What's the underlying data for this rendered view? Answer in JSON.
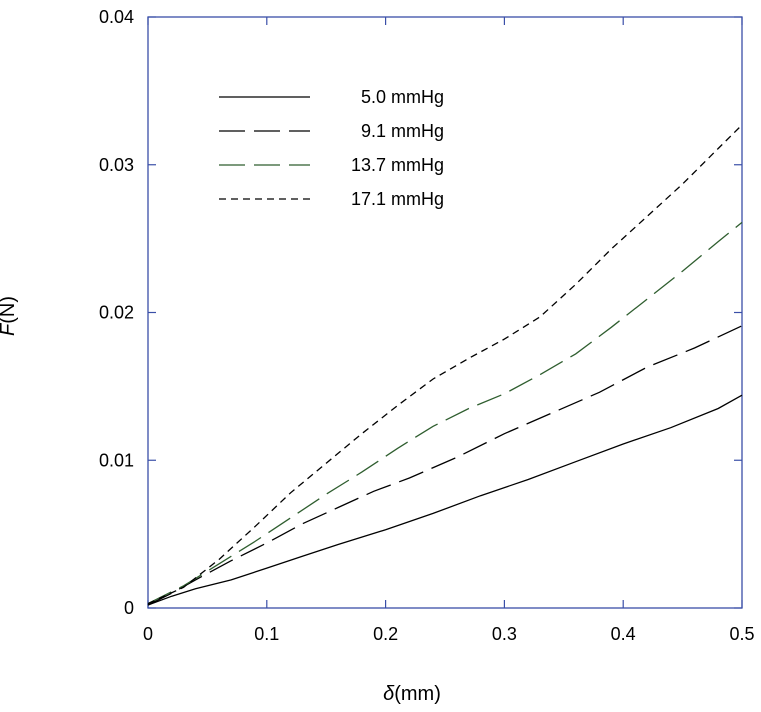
{
  "chart_data": {
    "type": "line",
    "title": "",
    "xlabel_symbol": "δ",
    "xlabel_unit": "(mm)",
    "ylabel_symbol": "F",
    "ylabel_unit": "(N)",
    "xlim": [
      0,
      0.5
    ],
    "ylim": [
      0,
      0.04
    ],
    "xticks": [
      0,
      0.1,
      0.2,
      0.3,
      0.4,
      0.5
    ],
    "xtick_labels": [
      "0",
      "0.1",
      "0.2",
      "0.3",
      "0.4",
      "0.5"
    ],
    "yticks": [
      0,
      0.01,
      0.02,
      0.03,
      0.04
    ],
    "ytick_labels": [
      "0",
      "0.01",
      "0.02",
      "0.03",
      "0.04"
    ],
    "grid": false,
    "legend_position": "top-left",
    "colors": {
      "axis_frame": "#3a4fa8",
      "black": "#000000",
      "green": "#2f5e2f"
    },
    "series": [
      {
        "name": "5.0 mmHg",
        "style": "solid",
        "color": "#000000",
        "x": [
          0,
          0.02,
          0.04,
          0.07,
          0.1,
          0.13,
          0.16,
          0.2,
          0.24,
          0.28,
          0.32,
          0.36,
          0.4,
          0.44,
          0.48,
          0.5
        ],
        "y": [
          0.0002,
          0.0008,
          0.0013,
          0.0019,
          0.0027,
          0.0035,
          0.0043,
          0.0053,
          0.0064,
          0.0076,
          0.0087,
          0.0099,
          0.0111,
          0.0122,
          0.0135,
          0.0144
        ]
      },
      {
        "name": "9.1 mmHg",
        "style": "long-dash",
        "color": "#000000",
        "x": [
          0,
          0.02,
          0.04,
          0.07,
          0.1,
          0.13,
          0.16,
          0.19,
          0.22,
          0.26,
          0.3,
          0.34,
          0.38,
          0.42,
          0.46,
          0.5
        ],
        "y": [
          0.0002,
          0.001,
          0.0019,
          0.0032,
          0.0044,
          0.0057,
          0.0068,
          0.0079,
          0.0088,
          0.0102,
          0.0118,
          0.0132,
          0.0146,
          0.0163,
          0.0176,
          0.0191
        ]
      },
      {
        "name": "13.7 mmHg",
        "style": "long-dash",
        "color": "#2f5e2f",
        "x": [
          0,
          0.03,
          0.06,
          0.09,
          0.12,
          0.15,
          0.18,
          0.21,
          0.24,
          0.27,
          0.3,
          0.33,
          0.36,
          0.39,
          0.42,
          0.45,
          0.48,
          0.5
        ],
        "y": [
          0.0003,
          0.0015,
          0.003,
          0.0045,
          0.0061,
          0.0077,
          0.0092,
          0.0108,
          0.0123,
          0.0135,
          0.0145,
          0.0158,
          0.0172,
          0.019,
          0.0209,
          0.0228,
          0.0248,
          0.0261
        ]
      },
      {
        "name": "17.1 mmHg",
        "style": "short-dash",
        "color": "#000000",
        "x": [
          0,
          0.03,
          0.06,
          0.09,
          0.12,
          0.15,
          0.18,
          0.21,
          0.24,
          0.27,
          0.3,
          0.33,
          0.36,
          0.39,
          0.42,
          0.45,
          0.48,
          0.5
        ],
        "y": [
          0.0003,
          0.0014,
          0.0033,
          0.0055,
          0.0078,
          0.0098,
          0.0118,
          0.0137,
          0.0155,
          0.0169,
          0.0182,
          0.0197,
          0.0219,
          0.0243,
          0.0265,
          0.0287,
          0.0311,
          0.0327
        ]
      }
    ]
  }
}
